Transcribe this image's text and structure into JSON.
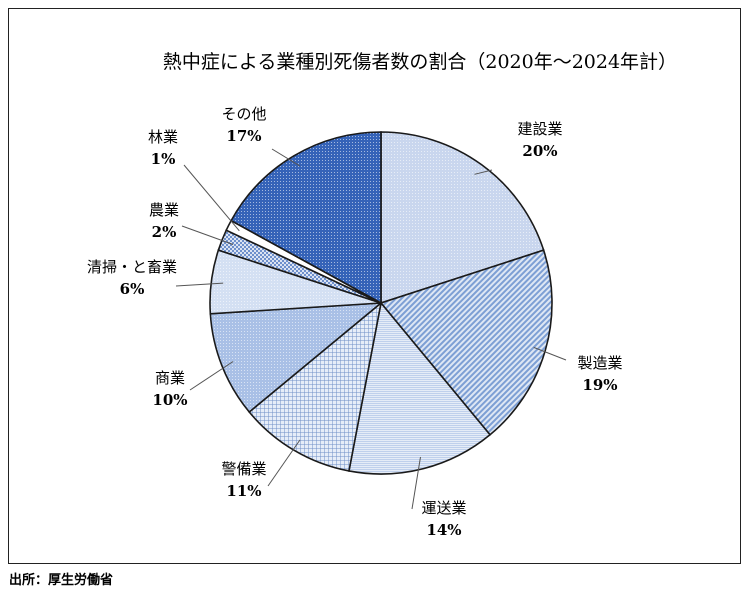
{
  "chart_data": {
    "type": "pie",
    "title": "熱中症による業種別死傷者数の割合（2020年～2024年計）",
    "start_angle_deg": 0,
    "direction": "clockwise",
    "slices": [
      {
        "label": "建設業",
        "value": 20,
        "value_label": "20%",
        "color": "#c9d6ee",
        "pattern": "dots"
      },
      {
        "label": "製造業",
        "value": 19,
        "value_label": "19%",
        "color": "#7d9fd4",
        "pattern": "diag"
      },
      {
        "label": "運送業",
        "value": 14,
        "value_label": "14%",
        "color": "#bfd0ec",
        "pattern": "hlines"
      },
      {
        "label": "警備業",
        "value": 11,
        "value_label": "11%",
        "color": "#c7d6ef",
        "pattern": "grid"
      },
      {
        "label": "商業",
        "value": 10,
        "value_label": "10%",
        "color": "#a9c0e6",
        "pattern": "dots"
      },
      {
        "label": "清掃・と畜業",
        "value": 6,
        "value_label": "6%",
        "color": "#d4e0f3",
        "pattern": "dots"
      },
      {
        "label": "農業",
        "value": 2,
        "value_label": "2%",
        "color": "#6e90cc",
        "pattern": "check"
      },
      {
        "label": "林業",
        "value": 1,
        "value_label": "1%",
        "color": "#ffffff",
        "pattern": "none"
      },
      {
        "label": "その他",
        "value": 17,
        "value_label": "17%",
        "color": "#3563b8",
        "pattern": "dots"
      }
    ]
  },
  "source_note": "出所：厚生労働省"
}
